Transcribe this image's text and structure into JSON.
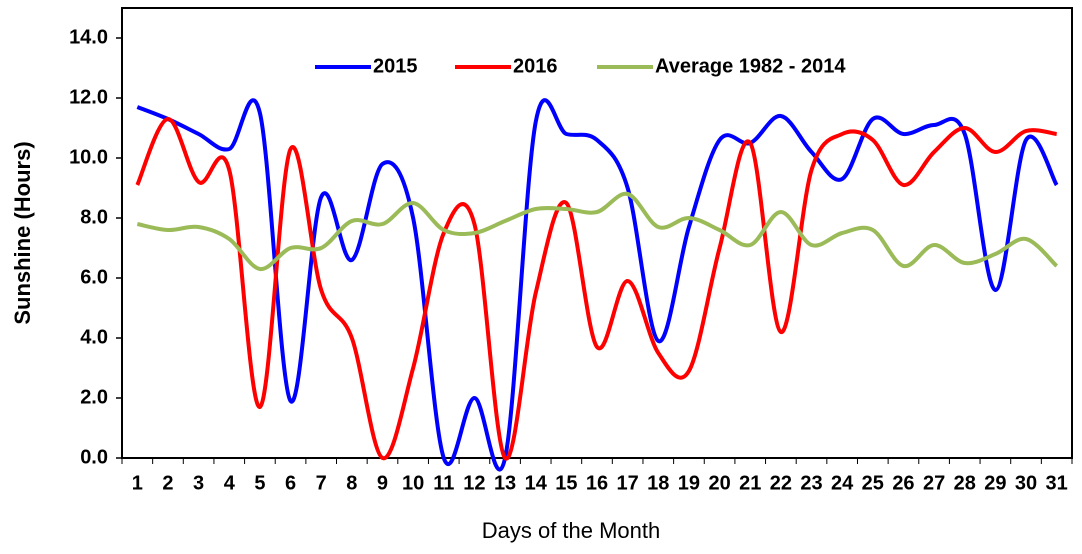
{
  "chart_data": {
    "type": "line",
    "x_label": "Days of the Month",
    "y_label": "Sunshine (Hours)",
    "categories": [
      "1",
      "2",
      "3",
      "4",
      "5",
      "6",
      "7",
      "8",
      "9",
      "10",
      "11",
      "12",
      "13",
      "14",
      "15",
      "16",
      "17",
      "18",
      "19",
      "20",
      "21",
      "22",
      "23",
      "24",
      "25",
      "26",
      "27",
      "28",
      "29",
      "30",
      "31"
    ],
    "series": [
      {
        "name": "2015",
        "color": "#0000ff",
        "values": [
          11.7,
          11.3,
          10.8,
          10.3,
          11.5,
          1.9,
          8.7,
          6.6,
          9.8,
          8.0,
          0.0,
          2.0,
          0.0,
          11.2,
          10.8,
          10.6,
          9.0,
          3.9,
          7.7,
          10.6,
          10.5,
          11.4,
          10.2,
          9.3,
          11.3,
          10.8,
          11.1,
          10.8,
          5.6,
          10.6,
          9.1
        ]
      },
      {
        "name": "2016",
        "color": "#ff0000",
        "values": [
          9.1,
          11.3,
          9.2,
          9.6,
          1.7,
          10.3,
          5.6,
          4.0,
          0.0,
          3.0,
          7.5,
          7.8,
          0.0,
          5.5,
          8.5,
          3.7,
          5.9,
          3.5,
          2.9,
          7.0,
          10.5,
          4.2,
          9.6,
          10.8,
          10.6,
          9.1,
          10.2,
          11.0,
          10.2,
          10.9,
          10.8
        ]
      },
      {
        "name": "Average 1982 - 2014",
        "color": "#9bbb59",
        "values": [
          7.8,
          7.6,
          7.7,
          7.3,
          6.3,
          7.0,
          7.0,
          7.9,
          7.8,
          8.5,
          7.6,
          7.5,
          7.9,
          8.3,
          8.3,
          8.2,
          8.8,
          7.7,
          8.0,
          7.6,
          7.1,
          8.2,
          7.1,
          7.5,
          7.6,
          6.4,
          7.1,
          6.5,
          6.8,
          7.3,
          6.4
        ]
      }
    ],
    "ylim": [
      0,
      15
    ],
    "yticks": [
      {
        "value": 0,
        "label": "0.0"
      },
      {
        "value": 2,
        "label": "2.0"
      },
      {
        "value": 4,
        "label": "4.0"
      },
      {
        "value": 6,
        "label": "6.0"
      },
      {
        "value": 8,
        "label": "8.0"
      },
      {
        "value": 10,
        "label": "10.0"
      },
      {
        "value": 12,
        "label": "12.0"
      },
      {
        "value": 14,
        "label": "14.0"
      }
    ],
    "legend": "top"
  }
}
